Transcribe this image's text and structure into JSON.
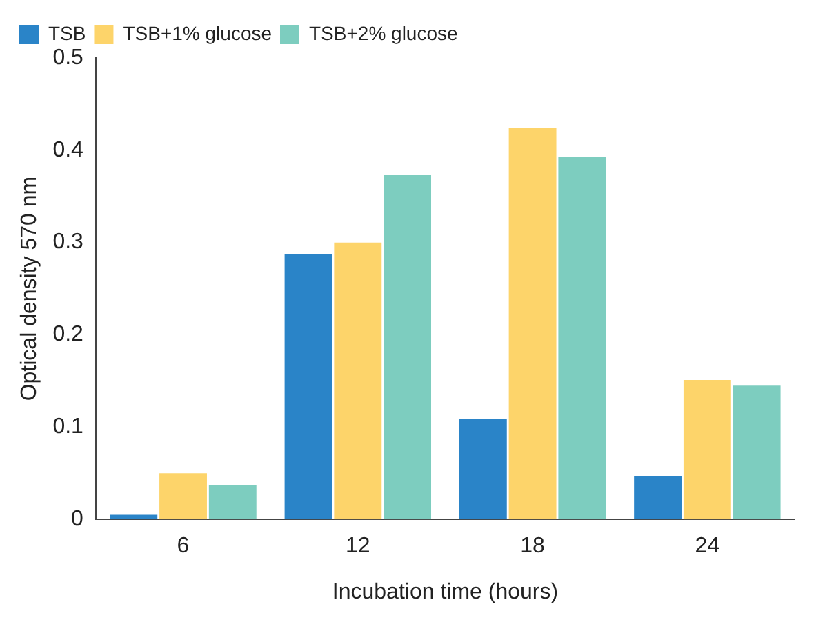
{
  "chart_data": {
    "type": "bar",
    "xlabel": "Incubation time (hours)",
    "ylabel": "Optical density 570 nm",
    "categories": [
      "6",
      "12",
      "18",
      "24"
    ],
    "series": [
      {
        "name": "TSB",
        "color": "#2a84c8",
        "values": [
          0.005,
          0.287,
          0.109,
          0.047
        ]
      },
      {
        "name": "TSB+1% glucose",
        "color": "#fdd46a",
        "values": [
          0.05,
          0.3,
          0.424,
          0.151
        ]
      },
      {
        "name": "TSB+2% glucose",
        "color": "#7dcdbf",
        "values": [
          0.037,
          0.373,
          0.393,
          0.145
        ]
      }
    ],
    "ylim": [
      0,
      0.5
    ],
    "yticks": [
      0,
      0.1,
      0.2,
      0.3,
      0.4,
      0.5
    ],
    "grid": false,
    "legend": "top left"
  }
}
